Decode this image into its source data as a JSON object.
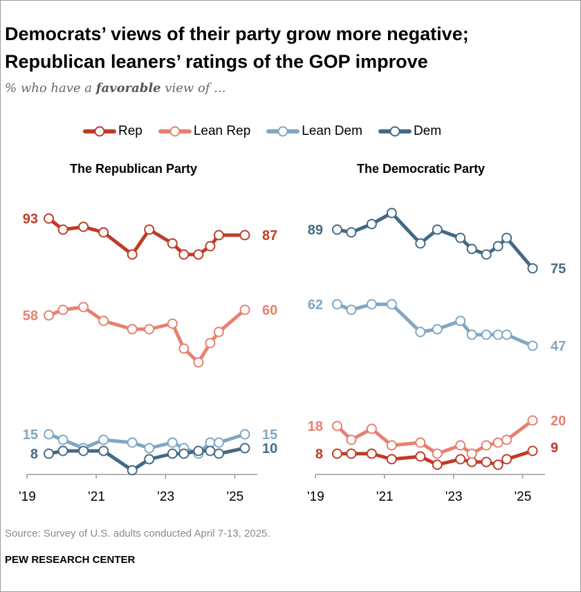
{
  "title_line1": "Democrats’ views of their party grow more negative;",
  "title_line2": "Republican leaners’ ratings of the GOP improve",
  "subtitle_pre": "% who have a ",
  "subtitle_bold": "favorable",
  "subtitle_post": " view of ...",
  "legend": [
    {
      "label": "Rep",
      "color": "#bf3b27"
    },
    {
      "label": "Lean Rep",
      "color": "#e8806f"
    },
    {
      "label": "Lean Dem",
      "color": "#80a7c2"
    },
    {
      "label": "Dem",
      "color": "#436a85"
    }
  ],
  "source": "Source: Survey of U.S. adults conducted April 7-13, 2025.",
  "brand": "PEW RESEARCH CENTER",
  "chart_data": [
    {
      "type": "line",
      "title": "The Republican Party",
      "x": [
        2019.63,
        2020.04,
        2020.63,
        2021.21,
        2022.04,
        2022.53,
        2023.2,
        2023.53,
        2023.95,
        2024.29,
        2024.54,
        2025.29
      ],
      "xticks": [
        "'19",
        "'21",
        "'23",
        "'25"
      ],
      "xtick_values": [
        2019,
        2021,
        2023,
        2025
      ],
      "xlim": [
        2019,
        2025.65
      ],
      "ylim": [
        0,
        100
      ],
      "series": [
        {
          "name": "Rep",
          "values": [
            93,
            89,
            90,
            88,
            80,
            89,
            84,
            80,
            80,
            83,
            87,
            87
          ]
        },
        {
          "name": "Lean Rep",
          "values": [
            58,
            60,
            61,
            56,
            53,
            53,
            55,
            46,
            41,
            48,
            52,
            60
          ]
        },
        {
          "name": "Lean Dem",
          "values": [
            15,
            13,
            10,
            13,
            12,
            10,
            12,
            10,
            8,
            12,
            12,
            15
          ]
        },
        {
          "name": "Dem",
          "values": [
            8,
            9,
            9,
            9,
            2,
            6,
            8,
            8,
            9,
            9,
            8,
            10
          ]
        }
      ]
    },
    {
      "type": "line",
      "title": "The Democratic Party",
      "x": [
        2019.63,
        2020.04,
        2020.63,
        2021.21,
        2022.04,
        2022.53,
        2023.2,
        2023.53,
        2023.95,
        2024.29,
        2024.54,
        2025.29
      ],
      "xticks": [
        "'19",
        "'21",
        "'23",
        "'25"
      ],
      "xtick_values": [
        2019,
        2021,
        2023,
        2025
      ],
      "xlim": [
        2019,
        2025.65
      ],
      "ylim": [
        0,
        100
      ],
      "series": [
        {
          "name": "Rep",
          "values": [
            8,
            8,
            8,
            6,
            7,
            4,
            6,
            5,
            5,
            4,
            6,
            9
          ]
        },
        {
          "name": "Lean Rep",
          "values": [
            18,
            13,
            17,
            11,
            12,
            8,
            11,
            8,
            11,
            12,
            13,
            20
          ]
        },
        {
          "name": "Lean Dem",
          "values": [
            62,
            60,
            62,
            62,
            52,
            53,
            56,
            51,
            51,
            51,
            51,
            47
          ]
        },
        {
          "name": "Dem",
          "values": [
            89,
            88,
            91,
            95,
            84,
            89,
            86,
            82,
            80,
            83,
            86,
            75
          ]
        }
      ]
    }
  ]
}
